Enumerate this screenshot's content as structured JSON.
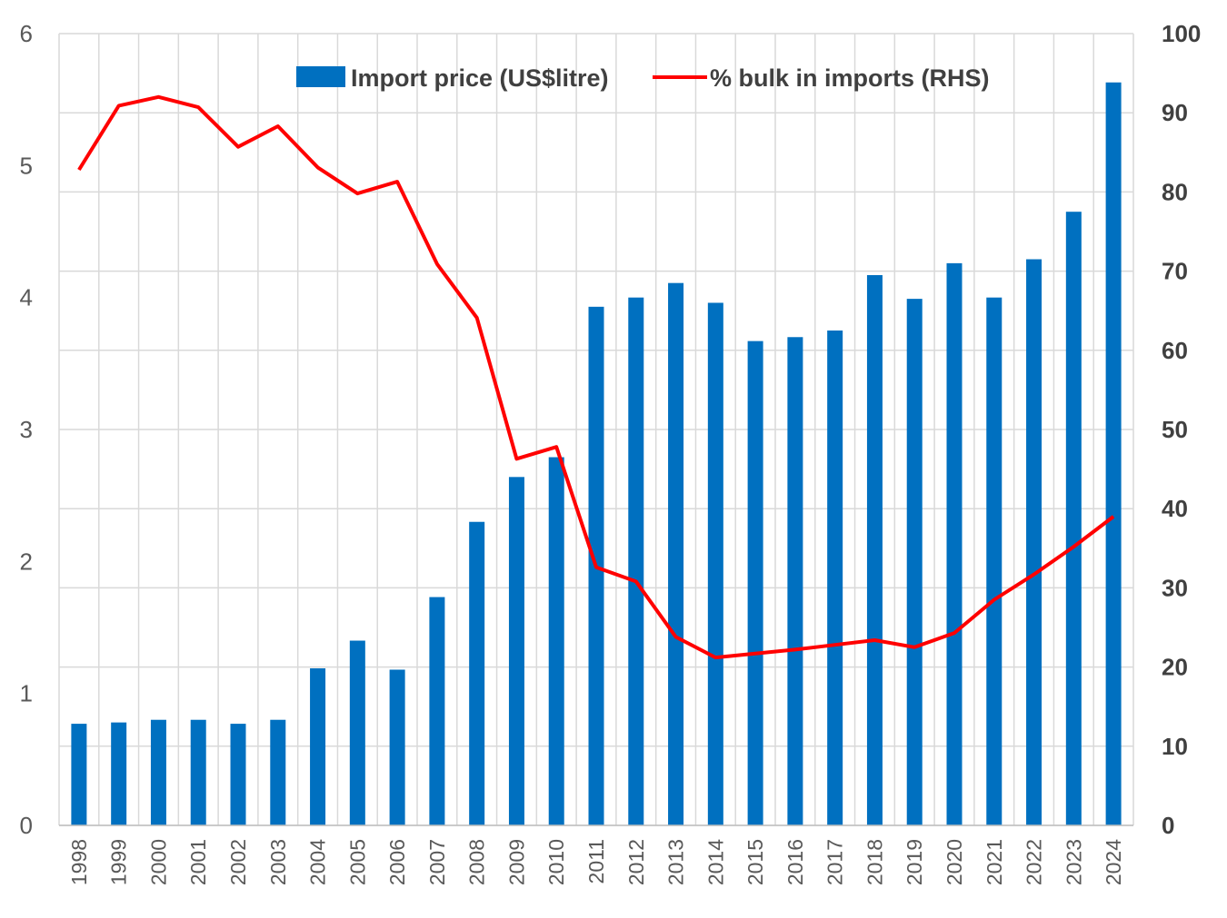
{
  "chart_data": {
    "type": "bar",
    "categories": [
      "1998",
      "1999",
      "2000",
      "2001",
      "2002",
      "2003",
      "2004",
      "2005",
      "2006",
      "2007",
      "2008",
      "2009",
      "2010",
      "2011",
      "2012",
      "2013",
      "2014",
      "2015",
      "2016",
      "2017",
      "2018",
      "2019",
      "2020",
      "2021",
      "2022",
      "2023",
      "2024"
    ],
    "series": [
      {
        "name": "Import price (US$litre)",
        "type": "bar",
        "axis": "left",
        "color": "#0070c0",
        "values": [
          0.77,
          0.78,
          0.8,
          0.8,
          0.77,
          0.8,
          1.19,
          1.4,
          1.18,
          1.73,
          2.3,
          2.64,
          2.79,
          3.93,
          4.0,
          4.11,
          3.96,
          3.67,
          3.7,
          3.75,
          4.17,
          3.99,
          4.26,
          4.0,
          4.29,
          4.65,
          5.63
        ]
      },
      {
        "name": "% bulk in imports (RHS)",
        "type": "line",
        "axis": "right",
        "color": "#ff0000",
        "values": [
          82.8,
          90.9,
          92.0,
          90.7,
          85.7,
          88.3,
          83.1,
          79.8,
          81.3,
          70.9,
          64.1,
          46.3,
          47.8,
          32.6,
          30.8,
          23.8,
          21.2,
          21.7,
          22.2,
          22.8,
          23.4,
          22.5,
          24.3,
          28.5,
          31.7,
          35.2,
          39.0
        ]
      }
    ],
    "y_left": {
      "ylim": [
        0,
        6
      ],
      "ticks": [
        "0",
        "1",
        "2",
        "3",
        "4",
        "5",
        "6"
      ]
    },
    "y_right": {
      "ylim": [
        0,
        100
      ],
      "ticks": [
        "0",
        "10",
        "20",
        "30",
        "40",
        "50",
        "60",
        "70",
        "80",
        "90",
        "100"
      ]
    },
    "grid": true,
    "legend_position": "top"
  }
}
